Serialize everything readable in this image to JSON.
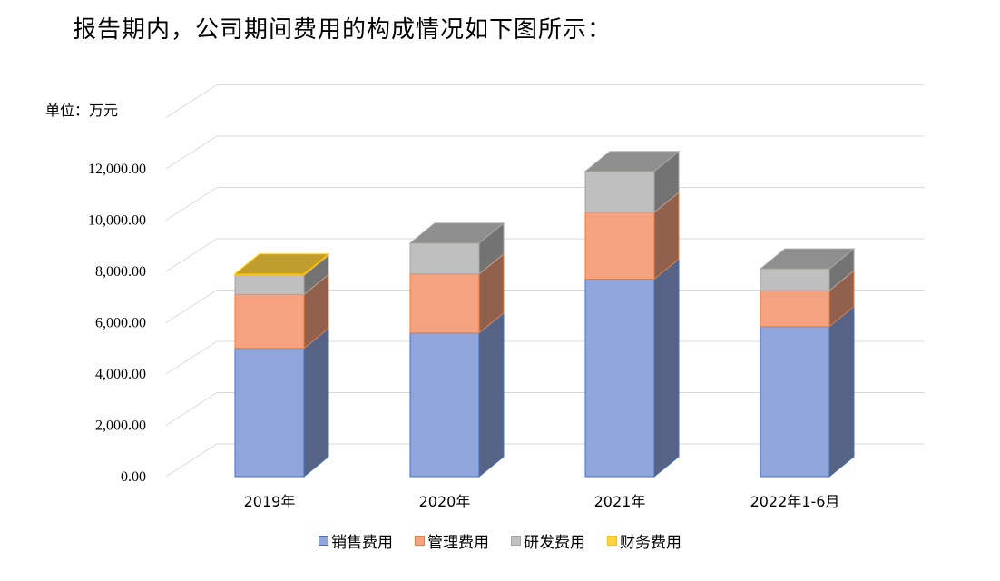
{
  "heading": "报告期内，公司期间费用的构成情况如下图所示：",
  "chart_data": {
    "type": "bar",
    "stacked": true,
    "style": "3d",
    "title": "",
    "unit_label": "单位：万元",
    "categories": [
      "2019年",
      "2020年",
      "2021年",
      "2022年1-6月"
    ],
    "series": [
      {
        "name": "销售费用",
        "color": "#8FA5DC",
        "values": [
          5000,
          5600,
          7700,
          5850
        ]
      },
      {
        "name": "管理费用",
        "color": "#F4A280",
        "values": [
          2100,
          2300,
          2600,
          1400
        ]
      },
      {
        "name": "研发费用",
        "color": "#BFBFBF",
        "values": [
          750,
          1200,
          1600,
          850
        ]
      },
      {
        "name": "财务费用",
        "color": "#FFD23F",
        "values": [
          50,
          0,
          0,
          0
        ]
      }
    ],
    "ylim": [
      0,
      12000
    ],
    "yticks": [
      "0.00",
      "2,000.00",
      "4,000.00",
      "6,000.00",
      "8,000.00",
      "10,000.00",
      "12,000.00"
    ],
    "grid": true,
    "legend_position": "bottom"
  }
}
